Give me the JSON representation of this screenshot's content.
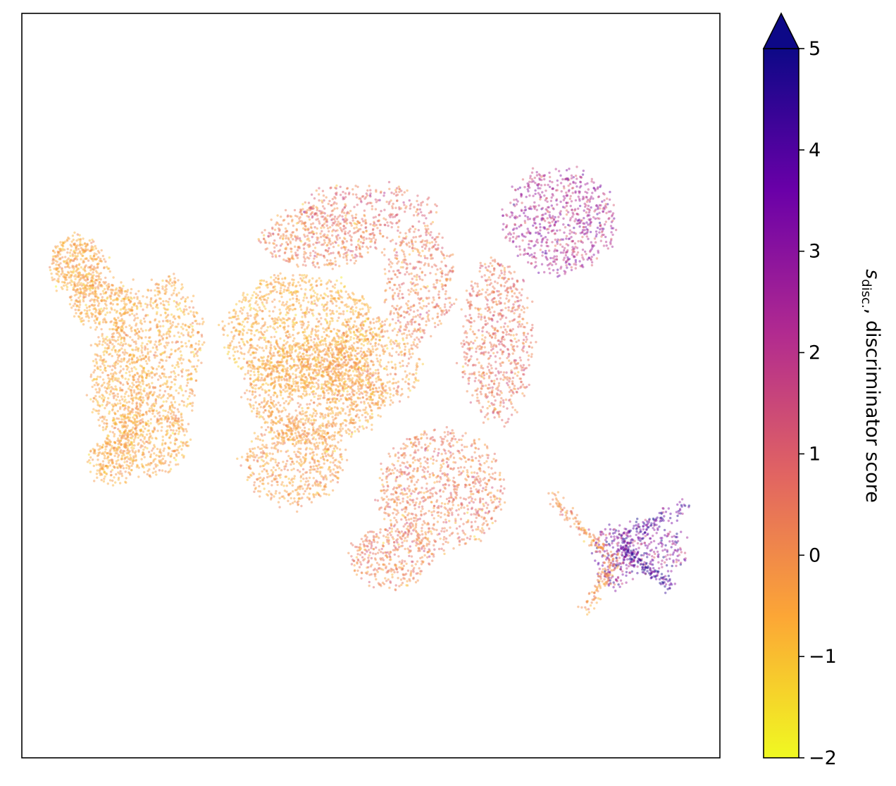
{
  "chart_data": {
    "type": "scatter",
    "title": "",
    "xlabel": "",
    "ylabel": "",
    "axes_ticks_visible": false,
    "grid": false,
    "legend": "none",
    "colorbar": {
      "label_var": "s",
      "label_sub": "disc.",
      "label_rest": ", discriminator score",
      "range": [
        -2,
        5
      ],
      "extend": "max",
      "colormap": "plasma_r",
      "ticks": [
        {
          "value": -2,
          "label": "−2"
        },
        {
          "value": -1,
          "label": "−1"
        },
        {
          "value": 0,
          "label": "0"
        },
        {
          "value": 1,
          "label": "1"
        },
        {
          "value": 2,
          "label": "2"
        },
        {
          "value": 3,
          "label": "3"
        },
        {
          "value": 4,
          "label": "4"
        },
        {
          "value": 5,
          "label": "5"
        }
      ],
      "colors": [
        "#f0f921",
        "#fca636",
        "#e16462",
        "#b12a90",
        "#6a00a8",
        "#0d0887"
      ]
    },
    "xlim": [
      0,
      100
    ],
    "ylim": [
      0,
      100
    ],
    "clusters": [
      {
        "cx": 8,
        "cy": 66,
        "rx": 4,
        "ry": 4,
        "n": 420,
        "score_mean": -0.5,
        "score_sd": 0.4
      },
      {
        "cx": 12,
        "cy": 61,
        "rx": 5,
        "ry": 3,
        "n": 320,
        "score_mean": -0.5,
        "score_sd": 0.4
      },
      {
        "cx": 14,
        "cy": 50,
        "rx": 4,
        "ry": 9,
        "n": 650,
        "score_mean": -0.5,
        "score_sd": 0.4
      },
      {
        "cx": 19,
        "cy": 43,
        "rx": 5,
        "ry": 5,
        "n": 380,
        "score_mean": -0.5,
        "score_sd": 0.4
      },
      {
        "cx": 21,
        "cy": 55,
        "rx": 5,
        "ry": 10,
        "n": 560,
        "score_mean": -0.5,
        "score_sd": 0.4
      },
      {
        "cx": 13,
        "cy": 40,
        "rx": 3.5,
        "ry": 3,
        "n": 220,
        "score_mean": -0.5,
        "score_sd": 0.4
      },
      {
        "cx": 40,
        "cy": 57,
        "rx": 11,
        "ry": 8,
        "n": 1300,
        "score_mean": -0.6,
        "score_sd": 0.4
      },
      {
        "cx": 42,
        "cy": 49,
        "rx": 10,
        "ry": 7,
        "n": 1000,
        "score_mean": -0.4,
        "score_sd": 0.4
      },
      {
        "cx": 39,
        "cy": 40,
        "rx": 7,
        "ry": 6,
        "n": 600,
        "score_mean": -0.3,
        "score_sd": 0.45
      },
      {
        "cx": 50,
        "cy": 53,
        "rx": 7,
        "ry": 6,
        "n": 500,
        "score_mean": -0.3,
        "score_sd": 0.5
      },
      {
        "cx": 43,
        "cy": 70,
        "rx": 9,
        "ry": 4,
        "n": 500,
        "score_mean": 0.2,
        "score_sd": 0.6
      },
      {
        "cx": 57,
        "cy": 64,
        "rx": 5,
        "ry": 8,
        "n": 450,
        "score_mean": 0.3,
        "score_sd": 0.6
      },
      {
        "cx": 68,
        "cy": 56,
        "rx": 5,
        "ry": 11,
        "n": 700,
        "score_mean": 0.5,
        "score_sd": 0.6
      },
      {
        "cx": 60,
        "cy": 36,
        "rx": 9,
        "ry": 8,
        "n": 900,
        "score_mean": 0.3,
        "score_sd": 0.6
      },
      {
        "cx": 53,
        "cy": 27,
        "rx": 6,
        "ry": 4,
        "n": 350,
        "score_mean": 0.3,
        "score_sd": 0.6
      },
      {
        "cx": 77,
        "cy": 72,
        "rx": 8,
        "ry": 7,
        "n": 700,
        "score_mean": 2.2,
        "score_sd": 0.8
      },
      {
        "cx": 50,
        "cy": 74,
        "rx": 10,
        "ry": 3,
        "n": 250,
        "score_mean": 0.8,
        "score_sd": 0.7
      },
      {
        "cx": 85,
        "cy": 27,
        "rx": 3,
        "ry": 4,
        "n": 200,
        "score_mean": 2.8,
        "score_sd": 1.2
      },
      {
        "cx": 90,
        "cy": 28,
        "rx": 5,
        "ry": 4,
        "n": 220,
        "score_mean": 3.0,
        "score_sd": 1.0
      }
    ],
    "tail": {
      "from": [
        76,
        35
      ],
      "to": [
        84,
        27
      ],
      "n": 120,
      "score_mean": 0.0,
      "score_sd": 0.6
    },
    "tail2": {
      "from": [
        81,
        20
      ],
      "to": [
        85,
        27
      ],
      "n": 100,
      "score_mean": -0.2,
      "score_sd": 0.5
    },
    "tail3": {
      "from": [
        86,
        28
      ],
      "to": [
        93,
        23
      ],
      "n": 100,
      "score_mean": 4.2,
      "score_sd": 0.7
    },
    "tail4": {
      "from": [
        86,
        29
      ],
      "to": [
        95,
        34
      ],
      "n": 100,
      "score_mean": 4.0,
      "score_sd": 0.8
    }
  }
}
